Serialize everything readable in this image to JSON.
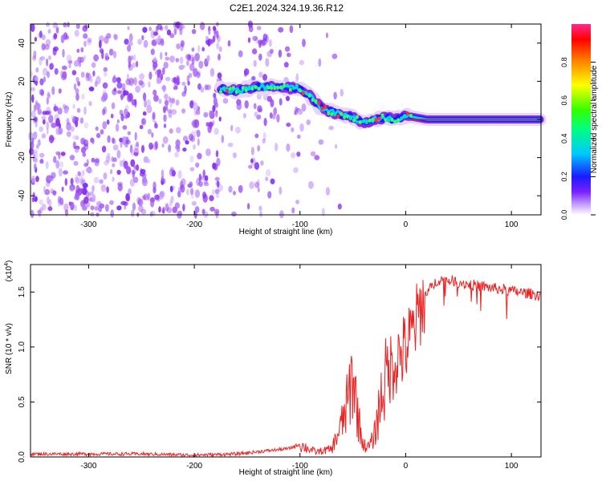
{
  "title": "C2E1.2024.324.19.36.R12",
  "colors": {
    "axis": "#000000",
    "snr_line": "#ee2222",
    "spec_fill": "#8a2be2"
  },
  "chart_data": [
    {
      "type": "heatmap",
      "xlabel": "Height of straight line (km)",
      "ylabel": "Frequency (Hz)",
      "xlim": [
        -355,
        128
      ],
      "ylim": [
        -50,
        50
      ],
      "xticks": [
        -300,
        -200,
        -100,
        0,
        100
      ],
      "yticks": [
        -40,
        -20,
        0,
        20,
        40
      ],
      "colorbar": {
        "label": "Normalized spectral amplitude",
        "range": [
          0,
          1
        ],
        "ticks": [
          "0.0",
          "0.2",
          "0.4",
          "0.6",
          "0.8"
        ],
        "tick_values": [
          0.0,
          0.2,
          0.4,
          0.6,
          0.8
        ]
      },
      "ridge": {
        "description_free": true,
        "x": [
          -175,
          -160,
          -140,
          -120,
          -100,
          -90,
          -80,
          -65,
          -50,
          -40,
          -30,
          -20,
          -10,
          0,
          20,
          60,
          128
        ],
        "freq_hz": [
          16,
          15,
          17,
          17,
          16,
          12,
          6,
          3,
          1,
          -2,
          0,
          1,
          0,
          2,
          0,
          0,
          0
        ]
      }
    },
    {
      "type": "line",
      "xlabel": "Height of straight line (km)",
      "ylabel": "SNR (10 * v/v)",
      "scale_label": "(x10",
      "scale_exp": "4",
      "scale_close": ")",
      "xlim": [
        -355,
        128
      ],
      "ylim": [
        0,
        1.75
      ],
      "xticks": [
        -300,
        -200,
        -100,
        0,
        100
      ],
      "yticks": [
        "0.0",
        "0.5",
        "1.0",
        "1.5"
      ],
      "ytick_values": [
        0.0,
        0.5,
        1.0,
        1.5
      ],
      "series": [
        {
          "x": [
            -355,
            -300,
            -250,
            -200,
            -160,
            -140,
            -110,
            -100,
            -95,
            -85,
            -70,
            -60,
            -55,
            -50,
            -45,
            -40,
            -35,
            -30,
            -25,
            -20,
            -10,
            0,
            10,
            15,
            20,
            30,
            40,
            60,
            80,
            100,
            128
          ],
          "values": [
            0.03,
            0.03,
            0.03,
            0.02,
            0.03,
            0.05,
            0.08,
            0.12,
            0.1,
            0.05,
            0.08,
            0.35,
            0.55,
            0.85,
            0.4,
            0.12,
            0.1,
            0.2,
            0.5,
            0.8,
            0.95,
            1.05,
            1.3,
            1.45,
            1.5,
            1.62,
            1.62,
            1.58,
            1.55,
            1.52,
            1.48
          ]
        }
      ]
    }
  ]
}
